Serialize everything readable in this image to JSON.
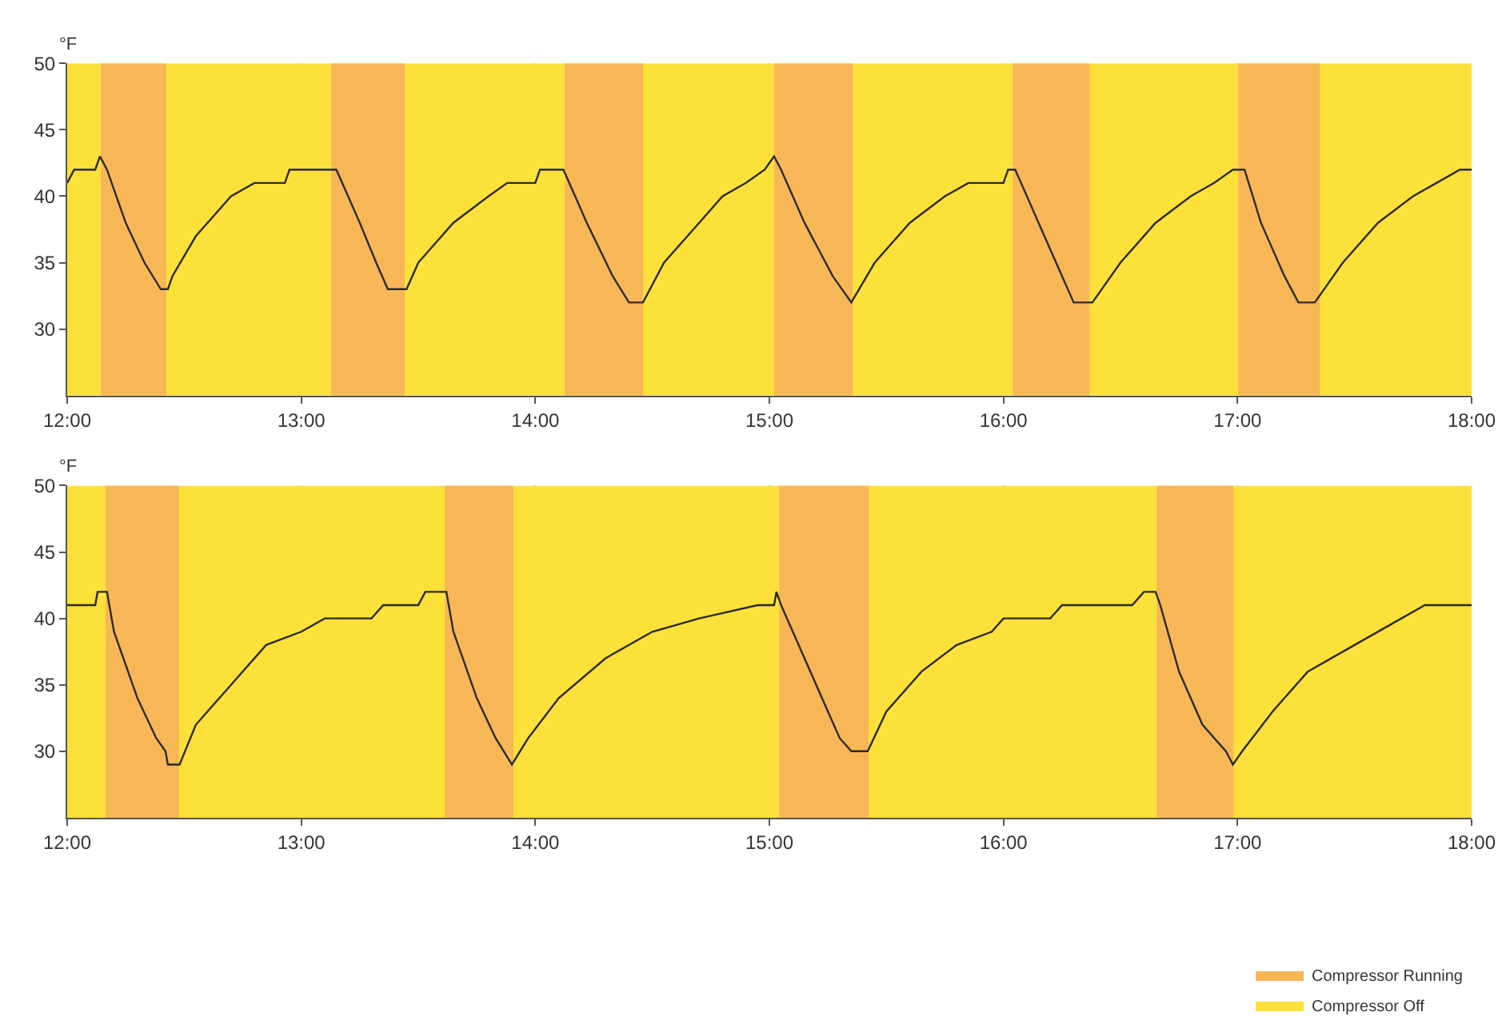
{
  "chart_data": [
    {
      "type": "line",
      "ylabel": "°F",
      "xlim": [
        12,
        18
      ],
      "ylim": [
        25,
        50
      ],
      "grid": true,
      "legend": false,
      "marker": "none",
      "line_style": "solid",
      "xticks": [
        {
          "value": 12,
          "label": "12:00"
        },
        {
          "value": 13,
          "label": "13:00"
        },
        {
          "value": 14,
          "label": "14:00"
        },
        {
          "value": 15,
          "label": "15:00"
        },
        {
          "value": 16,
          "label": "16:00"
        },
        {
          "value": 17,
          "label": "17:00"
        },
        {
          "value": 18,
          "label": "18:00"
        }
      ],
      "yticks": [
        30,
        35,
        40,
        45,
        50
      ],
      "bands": [
        {
          "axis": "x",
          "from": 12,
          "to": 18,
          "color": "#fde13b"
        },
        {
          "axis": "x",
          "from": 12.144,
          "to": 12.424,
          "color": "#f8b757"
        },
        {
          "axis": "x",
          "from": 13.128,
          "to": 13.442,
          "color": "#f8b757"
        },
        {
          "axis": "x",
          "from": 14.126,
          "to": 14.461,
          "color": "#f8b757"
        },
        {
          "axis": "x",
          "from": 15.021,
          "to": 15.356,
          "color": "#f8b757"
        },
        {
          "axis": "x",
          "from": 16.04,
          "to": 16.368,
          "color": "#f8b757"
        },
        {
          "axis": "x",
          "from": 17.003,
          "to": 17.352,
          "color": "#f8b757"
        }
      ],
      "series": [
        {
          "color": "#2b2b2b",
          "x": [
            12.0,
            12.03,
            12.12,
            12.14,
            12.17,
            12.25,
            12.33,
            12.4,
            12.43,
            12.45,
            12.55,
            12.7,
            12.8,
            12.93,
            12.95,
            13.15,
            13.25,
            13.32,
            13.37,
            13.45,
            13.5,
            13.65,
            13.8,
            13.88,
            14.0,
            14.02,
            14.12,
            14.22,
            14.33,
            14.4,
            14.46,
            14.55,
            14.7,
            14.8,
            14.9,
            14.98,
            15.02,
            15.05,
            15.15,
            15.27,
            15.35,
            15.45,
            15.6,
            15.75,
            15.85,
            16.0,
            16.02,
            16.05,
            16.15,
            16.25,
            16.3,
            16.38,
            16.5,
            16.65,
            16.8,
            16.9,
            16.98,
            17.03,
            17.1,
            17.2,
            17.26,
            17.33,
            17.45,
            17.6,
            17.75,
            17.85,
            17.95,
            18.0
          ],
          "values": [
            41,
            42,
            42,
            43,
            42,
            38,
            35,
            33,
            33,
            34,
            37,
            40,
            41,
            41,
            42,
            42,
            38,
            35,
            33,
            33,
            35,
            38,
            40,
            41,
            41,
            42,
            42,
            38,
            34,
            32,
            32,
            35,
            38,
            40,
            41,
            42,
            43,
            42,
            38,
            34,
            32,
            35,
            38,
            40,
            41,
            41,
            42,
            42,
            38,
            34,
            32,
            32,
            35,
            38,
            40,
            41,
            42,
            42,
            38,
            34,
            32,
            32,
            35,
            38,
            40,
            41,
            42,
            42
          ]
        }
      ]
    },
    {
      "type": "line",
      "ylabel": "°F",
      "xlim": [
        12,
        18
      ],
      "ylim": [
        25,
        50
      ],
      "grid": true,
      "legend": "bottom right",
      "marker": "none",
      "line_style": "solid",
      "xticks": [
        {
          "value": 12,
          "label": "12:00"
        },
        {
          "value": 13,
          "label": "13:00"
        },
        {
          "value": 14,
          "label": "14:00"
        },
        {
          "value": 15,
          "label": "15:00"
        },
        {
          "value": 16,
          "label": "16:00"
        },
        {
          "value": 17,
          "label": "17:00"
        },
        {
          "value": 18,
          "label": "18:00"
        }
      ],
      "yticks": [
        30,
        35,
        40,
        45,
        50
      ],
      "bands": [
        {
          "axis": "x",
          "from": 12,
          "to": 18,
          "color": "#fde13b",
          "label": "Compressor Off"
        },
        {
          "axis": "x",
          "from": 12.164,
          "to": 12.478,
          "color": "#f8b757",
          "label": "Compressor Running"
        },
        {
          "axis": "x",
          "from": 13.613,
          "to": 13.907,
          "color": "#f8b757"
        },
        {
          "axis": "x",
          "from": 15.042,
          "to": 15.424,
          "color": "#f8b757"
        },
        {
          "axis": "x",
          "from": 16.655,
          "to": 16.983,
          "color": "#f8b757"
        }
      ],
      "series": [
        {
          "color": "#2b2b2b",
          "x": [
            12.0,
            12.12,
            12.13,
            12.17,
            12.2,
            12.3,
            12.38,
            12.42,
            12.43,
            12.48,
            12.55,
            12.7,
            12.85,
            13.0,
            13.1,
            13.3,
            13.35,
            13.5,
            13.53,
            13.62,
            13.65,
            13.75,
            13.83,
            13.9,
            13.97,
            14.1,
            14.3,
            14.5,
            14.7,
            14.95,
            15.02,
            15.03,
            15.05,
            15.15,
            15.25,
            15.3,
            15.35,
            15.42,
            15.5,
            15.65,
            15.8,
            15.95,
            16.0,
            16.2,
            16.25,
            16.55,
            16.6,
            16.65,
            16.67,
            16.75,
            16.85,
            16.95,
            16.98,
            17.02,
            17.15,
            17.3,
            17.5,
            17.7,
            17.8,
            18.0
          ],
          "values": [
            41,
            41,
            42,
            42,
            39,
            34,
            31,
            30,
            29,
            29,
            32,
            35,
            38,
            39,
            40,
            40,
            41,
            41,
            42,
            42,
            39,
            34,
            31,
            29,
            31,
            34,
            37,
            39,
            40,
            41,
            41,
            42,
            41,
            37,
            33,
            31,
            30,
            30,
            33,
            36,
            38,
            39,
            40,
            40,
            41,
            41,
            42,
            42,
            41,
            36,
            32,
            30,
            29,
            30,
            33,
            36,
            38,
            40,
            41,
            41
          ]
        }
      ]
    }
  ]
}
